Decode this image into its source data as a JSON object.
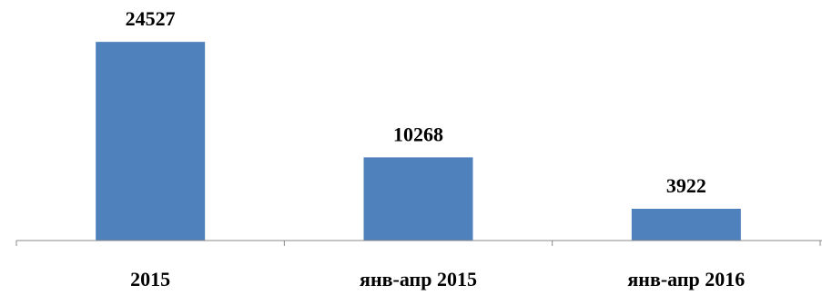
{
  "chart_data": {
    "type": "bar",
    "categories": [
      "2015",
      "янв-апр 2015",
      "янв-апр 2016"
    ],
    "values": [
      24527,
      10268,
      3922
    ],
    "data_labels": [
      "24527",
      "10268",
      "3922"
    ],
    "ylim": [
      0,
      26000
    ],
    "grid": false,
    "legend": "none",
    "colors": {
      "bar": "#4F81BD",
      "axis": "#888888",
      "text": "#000000"
    }
  }
}
